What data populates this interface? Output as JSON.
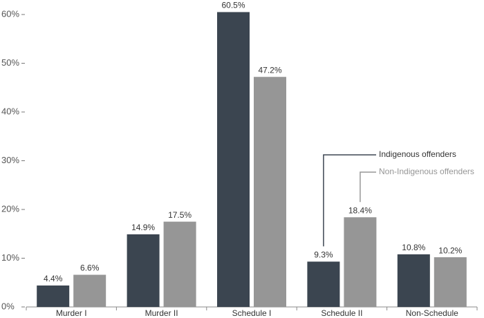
{
  "chart_data": {
    "type": "bar",
    "categories": [
      "Murder I",
      "Murder II",
      "Schedule I",
      "Schedule II",
      "Non-Schedule"
    ],
    "series": [
      {
        "name": "Indigenous offenders",
        "color": "#3b4550",
        "values": [
          4.4,
          14.9,
          60.5,
          9.3,
          10.8
        ],
        "value_labels": [
          "4.4%",
          "14.9%",
          "60.5%",
          "9.3%",
          "10.8%"
        ]
      },
      {
        "name": "Non-Indigenous offenders",
        "color": "#969696",
        "values": [
          6.6,
          17.5,
          47.2,
          18.4,
          10.2
        ],
        "value_labels": [
          "6.6%",
          "17.5%",
          "47.2%",
          "18.4%",
          "10.2%"
        ]
      }
    ],
    "ylim": [
      0,
      60
    ],
    "yticks": [
      {
        "value": 0,
        "label": "0%"
      },
      {
        "value": 10,
        "label": "10%"
      },
      {
        "value": 20,
        "label": "20%"
      },
      {
        "value": 30,
        "label": "30%"
      },
      {
        "value": 40,
        "label": "40%"
      },
      {
        "value": 50,
        "label": "50%"
      },
      {
        "value": 60,
        "label": "60%"
      }
    ],
    "grid": false
  }
}
